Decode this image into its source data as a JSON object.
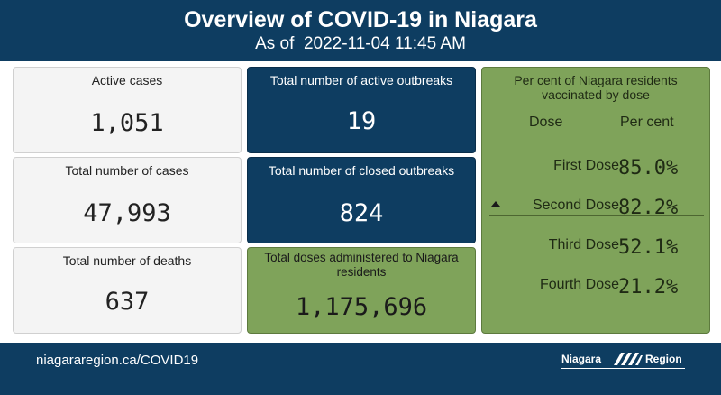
{
  "header": {
    "title": "Overview of COVID-19 in Niagara",
    "as_of_label": "As of",
    "timestamp": "2022-11-04 11:45 AM"
  },
  "cards": {
    "active_cases": {
      "label": "Active cases",
      "value": "1,051"
    },
    "total_cases": {
      "label": "Total number of cases",
      "value": "47,993"
    },
    "total_deaths": {
      "label": "Total number of deaths",
      "value": "637"
    },
    "active_outbreaks": {
      "label": "Total number of active outbreaks",
      "value": "19"
    },
    "closed_outbreaks": {
      "label": "Total number of closed outbreaks",
      "value": "824"
    },
    "doses_administered": {
      "label": "Total doses administered to Niagara residents",
      "value": "1,175,696"
    }
  },
  "vaccination": {
    "title": "Per cent of Niagara residents vaccinated by dose",
    "col_dose": "Dose",
    "col_pct": "Per cent",
    "rows": [
      {
        "dose": "First Dose",
        "pct": "85.0%"
      },
      {
        "dose": "Second Dose",
        "pct": "82.2%"
      },
      {
        "dose": "Third Dose",
        "pct": "52.1%"
      },
      {
        "dose": "Fourth Dose",
        "pct": "21.2%"
      }
    ]
  },
  "footer": {
    "link": "niagararegion.ca/COVID19",
    "logo_left": "Niagara",
    "logo_right": "Region"
  },
  "colors": {
    "navy": "#0e3d61",
    "green": "#7fa35a",
    "grey_card": "#f4f4f4"
  },
  "icons": {
    "sort": "sort-ascending-icon",
    "logo": "niagara-region-logo"
  }
}
